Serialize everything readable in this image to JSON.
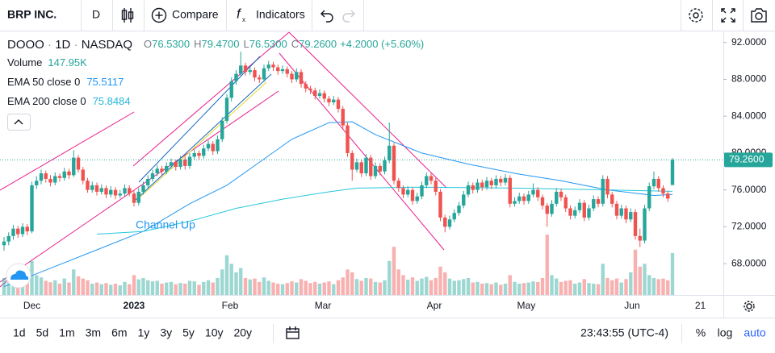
{
  "toolbar": {
    "symbol": "BRP INC.",
    "interval": "D",
    "compare": "Compare",
    "indicators": "Indicators"
  },
  "legend": {
    "symbol": "DOOO",
    "interval": "1D",
    "exchange": "NASDAQ",
    "ohlc": [
      {
        "key": "O",
        "value": "76.5300"
      },
      {
        "key": "H",
        "value": "79.4700"
      },
      {
        "key": "L",
        "value": "76.5300"
      },
      {
        "key": "C",
        "value": "79.2600"
      }
    ],
    "change": "+4.2000 (+5.60%)",
    "volume_label": "Volume",
    "volume_value": "147.95K",
    "ema50_label": "EMA 50 close 0",
    "ema50_value": "75.5117",
    "ema200_label": "EMA 200 close 0",
    "ema200_value": "75.8484"
  },
  "chart_data": {
    "type": "candlestick",
    "open": [
      70.0,
      70.4,
      71.0,
      71.8,
      71.2,
      72.0,
      71.5,
      76.5,
      77.0,
      77.8,
      77.2,
      76.8,
      77.5,
      77.3,
      78.0,
      77.6,
      79.5,
      78.2,
      77.0,
      76.0,
      76.5,
      75.8,
      76.2,
      75.5,
      76.0,
      75.4,
      75.6,
      76.2,
      75.6,
      74.6,
      75.8,
      76.5,
      77.2,
      77.8,
      78.3,
      78.0,
      78.6,
      79.0,
      78.5,
      79.3,
      78.6,
      79.6,
      80.0,
      79.7,
      80.5,
      81.0,
      80.2,
      81.5,
      83.5,
      86.0,
      87.8,
      88.6,
      89.5,
      88.8,
      89.0,
      88.2,
      88.0,
      89.2,
      89.6,
      89.3,
      88.9,
      89.1,
      88.6,
      88.0,
      88.8,
      87.5,
      87.0,
      86.8,
      86.2,
      86.5,
      85.9,
      85.5,
      85.8,
      84.8,
      83.0,
      80.0,
      78.2,
      79.0,
      77.8,
      79.5,
      77.5,
      78.6,
      78.0,
      79.2,
      80.8,
      77.0,
      76.2,
      75.5,
      76.0,
      74.8,
      75.3,
      76.5,
      77.5,
      77.0,
      75.8,
      73.0,
      72.0,
      72.8,
      73.5,
      74.3,
      75.5,
      76.5,
      76.0,
      76.8,
      76.3,
      77.0,
      76.5,
      77.2,
      76.8,
      77.3,
      74.5,
      74.8,
      75.3,
      74.8,
      75.5,
      76.0,
      75.2,
      74.3,
      73.4,
      74.5,
      75.8,
      75.2,
      74.0,
      73.2,
      73.8,
      74.6,
      73.0,
      74.0,
      75.0,
      74.5,
      77.2,
      75.5,
      74.5,
      73.2,
      74.0,
      72.8,
      73.6,
      71.0,
      70.5,
      74.0,
      76.4,
      77.2,
      76.2,
      75.6,
      76.53
    ],
    "high": [
      70.9,
      71.4,
      72.2,
      72.1,
      72.4,
      72.3,
      76.9,
      77.5,
      78.2,
      78.1,
      77.6,
      77.9,
      77.8,
      78.4,
      78.3,
      80.3,
      79.8,
      78.5,
      77.3,
      76.9,
      76.8,
      76.6,
      76.5,
      76.4,
      76.3,
      76.0,
      76.6,
      76.5,
      75.9,
      76.2,
      76.9,
      77.6,
      78.2,
      78.7,
      78.6,
      79.0,
      79.4,
      79.3,
      79.7,
      79.6,
      80.0,
      80.4,
      80.3,
      80.9,
      81.4,
      81.3,
      81.9,
      83.9,
      86.4,
      88.2,
      89.0,
      91.0,
      89.8,
      89.4,
      89.3,
      88.5,
      89.6,
      90.0,
      89.9,
      89.6,
      89.5,
      89.4,
      88.9,
      89.2,
      89.1,
      87.8,
      87.3,
      87.1,
      86.9,
      86.8,
      86.2,
      86.2,
      86.1,
      85.1,
      83.3,
      80.3,
      79.4,
      79.3,
      79.9,
      79.8,
      79.0,
      78.9,
      79.6,
      83.3,
      81.1,
      77.3,
      76.5,
      76.4,
      76.3,
      75.7,
      76.9,
      77.9,
      77.8,
      77.3,
      76.1,
      73.3,
      73.2,
      73.9,
      74.7,
      75.9,
      76.9,
      76.8,
      77.2,
      77.1,
      77.4,
      77.3,
      77.6,
      77.5,
      77.7,
      77.6,
      75.2,
      75.7,
      75.6,
      75.9,
      76.7,
      76.3,
      75.5,
      74.6,
      74.9,
      76.2,
      76.1,
      75.5,
      74.3,
      74.2,
      75.0,
      74.9,
      74.4,
      75.4,
      75.3,
      77.6,
      77.5,
      75.8,
      74.8,
      74.4,
      74.3,
      74.0,
      73.9,
      71.8,
      74.4,
      76.8,
      78.0,
      77.5,
      76.5,
      75.9,
      79.47
    ],
    "low": [
      69.4,
      70.0,
      70.6,
      70.8,
      70.9,
      71.1,
      71.3,
      76.1,
      76.6,
      76.8,
      76.4,
      76.5,
      76.9,
      77.0,
      77.2,
      77.4,
      77.9,
      76.6,
      75.7,
      75.7,
      75.4,
      75.5,
      75.1,
      75.2,
      75.0,
      75.1,
      75.3,
      75.3,
      74.2,
      74.3,
      75.5,
      76.2,
      76.9,
      77.5,
      77.6,
      77.7,
      78.3,
      78.1,
      78.2,
      78.2,
      78.3,
      79.3,
      79.3,
      79.4,
      80.2,
      79.8,
      79.9,
      81.2,
      83.2,
      85.6,
      87.4,
      88.3,
      88.4,
      88.5,
      87.8,
      87.6,
      87.7,
      88.9,
      88.9,
      88.5,
      88.6,
      88.2,
      87.6,
      87.7,
      87.1,
      86.6,
      86.4,
      85.8,
      85.9,
      85.5,
      85.1,
      85.2,
      84.4,
      82.6,
      79.6,
      77.0,
      77.9,
      77.4,
      77.5,
      77.1,
      77.2,
      77.6,
      77.7,
      78.9,
      76.6,
      75.8,
      75.1,
      75.2,
      74.4,
      74.5,
      75.0,
      76.2,
      76.6,
      75.4,
      72.6,
      71.4,
      71.7,
      72.5,
      73.2,
      74.0,
      75.2,
      75.6,
      75.7,
      75.9,
      76.0,
      76.1,
      76.2,
      76.4,
      76.5,
      74.1,
      74.2,
      74.5,
      74.4,
      74.5,
      75.2,
      74.8,
      73.9,
      72.0,
      73.1,
      74.2,
      74.8,
      73.6,
      72.8,
      72.9,
      73.5,
      72.6,
      72.7,
      73.7,
      74.1,
      74.2,
      75.1,
      74.1,
      72.8,
      72.9,
      72.4,
      72.5,
      70.6,
      69.8,
      70.2,
      73.7,
      76.1,
      75.8,
      75.2,
      74.7,
      76.53
    ],
    "close": [
      70.4,
      71.0,
      71.8,
      71.2,
      72.0,
      71.5,
      76.5,
      77.0,
      77.8,
      77.2,
      76.8,
      77.5,
      77.3,
      78.0,
      77.6,
      79.5,
      78.2,
      77.0,
      76.0,
      76.5,
      75.8,
      76.2,
      75.5,
      76.0,
      75.4,
      75.6,
      76.2,
      75.6,
      74.6,
      75.8,
      76.5,
      77.2,
      77.8,
      78.3,
      78.0,
      78.6,
      79.0,
      78.5,
      79.3,
      78.6,
      79.6,
      80.0,
      79.7,
      80.5,
      81.0,
      80.2,
      81.5,
      83.5,
      86.0,
      87.8,
      88.6,
      89.5,
      88.8,
      89.0,
      88.2,
      88.0,
      89.2,
      89.6,
      89.3,
      88.9,
      89.1,
      88.6,
      88.0,
      88.8,
      87.5,
      87.0,
      86.8,
      86.2,
      86.5,
      85.9,
      85.5,
      85.8,
      84.8,
      83.0,
      80.0,
      78.2,
      79.0,
      77.8,
      79.5,
      77.5,
      78.6,
      78.0,
      79.2,
      80.8,
      77.0,
      76.2,
      75.5,
      76.0,
      74.8,
      75.3,
      76.5,
      77.5,
      77.0,
      75.8,
      73.0,
      72.0,
      72.8,
      73.5,
      74.3,
      75.5,
      76.5,
      76.0,
      76.8,
      76.3,
      77.0,
      76.5,
      77.2,
      76.8,
      77.3,
      74.5,
      74.8,
      75.3,
      74.8,
      75.5,
      76.0,
      75.2,
      74.3,
      73.4,
      74.5,
      75.8,
      75.2,
      74.0,
      73.2,
      73.8,
      74.6,
      73.0,
      74.0,
      75.0,
      74.5,
      77.2,
      75.5,
      74.5,
      73.2,
      74.0,
      72.8,
      73.6,
      71.0,
      70.5,
      74.0,
      76.4,
      77.2,
      76.2,
      75.6,
      75.06,
      79.26
    ],
    "volume": [
      60,
      45,
      50,
      40,
      55,
      48,
      120,
      70,
      62,
      50,
      45,
      52,
      40,
      58,
      44,
      90,
      66,
      58,
      52,
      40,
      44,
      38,
      42,
      36,
      40,
      34,
      46,
      38,
      70,
      55,
      60,
      52,
      48,
      50,
      40,
      44,
      46,
      38,
      42,
      40,
      50,
      48,
      36,
      46,
      52,
      44,
      60,
      90,
      140,
      110,
      80,
      95,
      60,
      55,
      58,
      46,
      62,
      50,
      44,
      40,
      38,
      42,
      48,
      44,
      56,
      50,
      42,
      46,
      40,
      44,
      48,
      38,
      52,
      62,
      90,
      80,
      56,
      50,
      60,
      58,
      46,
      44,
      52,
      120,
      170,
      90,
      70,
      54,
      62,
      50,
      58,
      64,
      52,
      60,
      100,
      80,
      58,
      50,
      52,
      56,
      60,
      44,
      46,
      40,
      42,
      38,
      44,
      36,
      40,
      70,
      46,
      40,
      42,
      44,
      48,
      46,
      60,
      213,
      70,
      58,
      46,
      50,
      52,
      40,
      44,
      56,
      42,
      40,
      38,
      110,
      60,
      52,
      58,
      44,
      56,
      80,
      160,
      100,
      110,
      70,
      60,
      56,
      58,
      52,
      147.95
    ],
    "ylim": [
      64.6,
      93.2
    ],
    "y2lim": [
      0,
      930
    ],
    "yticks": [
      {
        "value": 92,
        "label": "92.0000"
      },
      {
        "value": 88,
        "label": "88.0000"
      },
      {
        "value": 84,
        "label": "84.0000"
      },
      {
        "value": 80,
        "label": "80.0000"
      },
      {
        "value": 76,
        "label": "76.0000"
      },
      {
        "value": 72,
        "label": "72.0000"
      },
      {
        "value": 68,
        "label": "68.0000"
      }
    ],
    "last_price": {
      "value": 79.26,
      "label": "79.2600"
    },
    "time_labels": [
      {
        "index": 6,
        "label": "Dec"
      },
      {
        "index": 28,
        "label": "2023"
      },
      {
        "index": 48.7,
        "label": "Feb"
      },
      {
        "index": 68.7,
        "label": "Mar"
      },
      {
        "index": 92.7,
        "label": "Apr"
      },
      {
        "index": 112.5,
        "label": "May"
      },
      {
        "index": 135.3,
        "label": "Jun"
      },
      {
        "index": 150,
        "label": "21"
      }
    ],
    "series": [
      {
        "name": "EMA 50",
        "color": "#2196f3",
        "index": [
          0,
          10,
          20,
          30,
          40,
          48,
          55,
          62,
          70,
          75,
          80,
          90,
          100,
          110,
          120,
          130,
          140,
          144
        ],
        "values": [
          65.5,
          67.5,
          69.5,
          71.5,
          74.5,
          76.5,
          79.0,
          81.5,
          83.3,
          83.4,
          82.0,
          80.0,
          78.8,
          77.8,
          77.0,
          76.0,
          75.4,
          75.51
        ]
      },
      {
        "name": "EMA 200",
        "color": "#26c6da",
        "index": [
          20,
          30,
          40,
          50,
          60,
          70,
          76,
          90,
          110,
          130,
          144
        ],
        "values": [
          71.2,
          71.5,
          72.6,
          74.0,
          75.0,
          75.8,
          76.2,
          76.3,
          76.2,
          76.0,
          75.85
        ]
      }
    ],
    "up_color": "#26a69a",
    "down_color": "#ef5350",
    "annotation": "Channel Up"
  },
  "bottom_bar": {
    "ranges": [
      "1d",
      "5d",
      "1m",
      "3m",
      "6m",
      "1y",
      "3y",
      "5y",
      "10y",
      "20y"
    ],
    "clock": "23:43:55 (UTC-4)",
    "percent": "%",
    "log": "log",
    "auto": "auto"
  }
}
